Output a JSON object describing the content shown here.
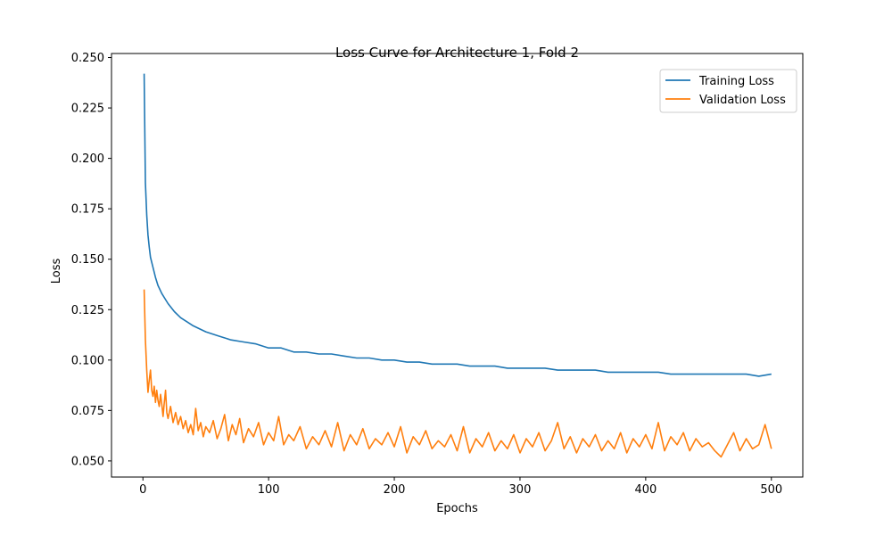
{
  "chart_data": {
    "type": "line",
    "title": "Loss Curve for Architecture 1, Fold 2",
    "xlabel": "Epochs",
    "ylabel": "Loss",
    "xlim": [
      -25,
      525
    ],
    "ylim": [
      0.042,
      0.252
    ],
    "xticks": [
      0,
      100,
      200,
      300,
      400,
      500
    ],
    "xtick_labels": [
      "0",
      "100",
      "200",
      "300",
      "400",
      "500"
    ],
    "yticks": [
      0.05,
      0.075,
      0.1,
      0.125,
      0.15,
      0.175,
      0.2,
      0.225,
      0.25
    ],
    "ytick_labels": [
      "0.050",
      "0.075",
      "0.100",
      "0.125",
      "0.150",
      "0.175",
      "0.200",
      "0.225",
      "0.250"
    ],
    "grid": false,
    "legend_position": "top-right",
    "series": [
      {
        "name": "Training Loss",
        "color": "#1f77b4",
        "x": [
          1,
          2,
          3,
          4,
          5,
          6,
          8,
          10,
          12,
          15,
          18,
          20,
          25,
          30,
          35,
          40,
          50,
          60,
          70,
          80,
          90,
          100,
          110,
          120,
          130,
          140,
          150,
          160,
          170,
          180,
          190,
          200,
          210,
          220,
          230,
          240,
          250,
          260,
          270,
          280,
          290,
          300,
          310,
          320,
          330,
          340,
          350,
          360,
          370,
          380,
          390,
          400,
          410,
          420,
          430,
          440,
          450,
          460,
          470,
          480,
          490,
          500
        ],
        "y": [
          0.242,
          0.188,
          0.172,
          0.162,
          0.156,
          0.151,
          0.146,
          0.141,
          0.137,
          0.133,
          0.13,
          0.128,
          0.124,
          0.121,
          0.119,
          0.117,
          0.114,
          0.112,
          0.11,
          0.109,
          0.108,
          0.106,
          0.106,
          0.104,
          0.104,
          0.103,
          0.103,
          0.102,
          0.101,
          0.101,
          0.1,
          0.1,
          0.099,
          0.099,
          0.098,
          0.098,
          0.098,
          0.097,
          0.097,
          0.097,
          0.096,
          0.096,
          0.096,
          0.096,
          0.095,
          0.095,
          0.095,
          0.095,
          0.094,
          0.094,
          0.094,
          0.094,
          0.094,
          0.093,
          0.093,
          0.093,
          0.093,
          0.093,
          0.093,
          0.093,
          0.092,
          0.093
        ]
      },
      {
        "name": "Validation Loss",
        "color": "#ff7f0e",
        "x": [
          1,
          2,
          3,
          4,
          5,
          6,
          7,
          8,
          9,
          10,
          11,
          12,
          13,
          14,
          15,
          16,
          17,
          18,
          19,
          20,
          22,
          24,
          26,
          28,
          30,
          32,
          34,
          36,
          38,
          40,
          42,
          44,
          46,
          48,
          50,
          53,
          56,
          59,
          62,
          65,
          68,
          71,
          74,
          77,
          80,
          84,
          88,
          92,
          96,
          100,
          104,
          108,
          112,
          116,
          120,
          125,
          130,
          135,
          140,
          145,
          150,
          155,
          160,
          165,
          170,
          175,
          180,
          185,
          190,
          195,
          200,
          205,
          210,
          215,
          220,
          225,
          230,
          235,
          240,
          245,
          250,
          255,
          260,
          265,
          270,
          275,
          280,
          285,
          290,
          295,
          300,
          305,
          310,
          315,
          320,
          325,
          330,
          335,
          340,
          345,
          350,
          355,
          360,
          365,
          370,
          375,
          380,
          385,
          390,
          395,
          400,
          405,
          410,
          415,
          420,
          425,
          430,
          435,
          440,
          445,
          450,
          455,
          460,
          465,
          470,
          475,
          480,
          485,
          490,
          495,
          500
        ],
        "y": [
          0.135,
          0.11,
          0.095,
          0.084,
          0.09,
          0.095,
          0.085,
          0.082,
          0.087,
          0.079,
          0.085,
          0.08,
          0.077,
          0.083,
          0.078,
          0.072,
          0.079,
          0.085,
          0.074,
          0.071,
          0.077,
          0.069,
          0.074,
          0.068,
          0.072,
          0.066,
          0.07,
          0.064,
          0.068,
          0.063,
          0.076,
          0.065,
          0.069,
          0.062,
          0.067,
          0.064,
          0.07,
          0.061,
          0.066,
          0.073,
          0.06,
          0.068,
          0.063,
          0.071,
          0.059,
          0.066,
          0.062,
          0.069,
          0.058,
          0.064,
          0.06,
          0.072,
          0.058,
          0.063,
          0.06,
          0.067,
          0.056,
          0.062,
          0.058,
          0.065,
          0.057,
          0.069,
          0.055,
          0.063,
          0.058,
          0.066,
          0.056,
          0.061,
          0.058,
          0.064,
          0.057,
          0.067,
          0.054,
          0.062,
          0.058,
          0.065,
          0.056,
          0.06,
          0.057,
          0.063,
          0.055,
          0.067,
          0.054,
          0.061,
          0.057,
          0.064,
          0.055,
          0.06,
          0.056,
          0.063,
          0.054,
          0.061,
          0.057,
          0.064,
          0.055,
          0.06,
          0.069,
          0.056,
          0.062,
          0.054,
          0.061,
          0.057,
          0.063,
          0.055,
          0.06,
          0.056,
          0.064,
          0.054,
          0.061,
          0.057,
          0.063,
          0.056,
          0.069,
          0.055,
          0.062,
          0.058,
          0.064,
          0.055,
          0.061,
          0.057,
          0.059,
          0.055,
          0.052,
          0.058,
          0.064,
          0.055,
          0.061,
          0.056,
          0.058,
          0.068,
          0.056
        ]
      }
    ]
  }
}
